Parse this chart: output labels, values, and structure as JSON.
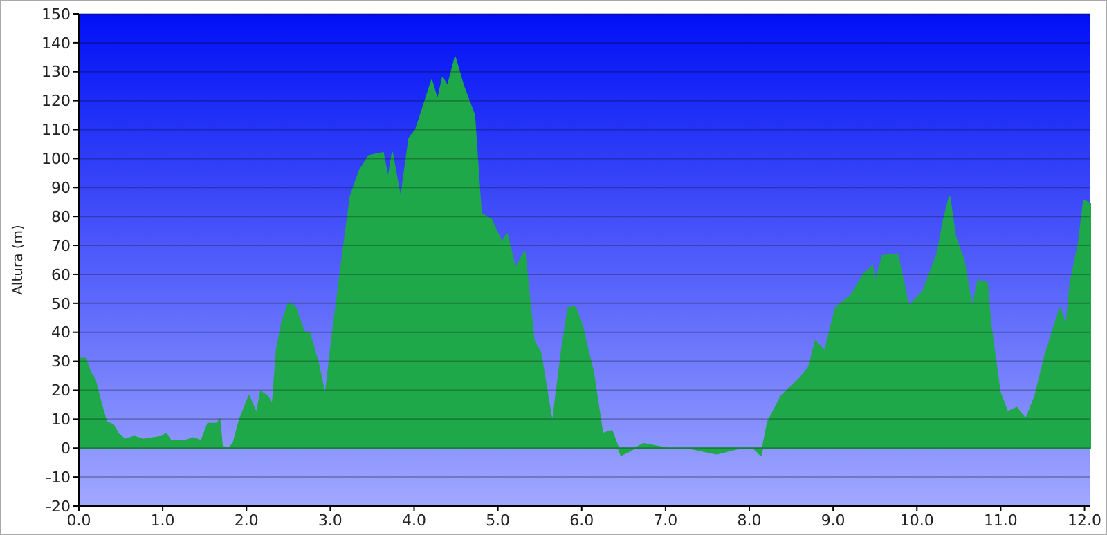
{
  "chart_data": {
    "type": "area",
    "ylabel": "Altura (m)",
    "grid": "y",
    "x": [
      0,
      0.08,
      0.14,
      0.19,
      0.27,
      0.33,
      0.41,
      0.47,
      0.55,
      0.66,
      0.77,
      0.99,
      1.04,
      1.1,
      1.26,
      1.37,
      1.46,
      1.54,
      1.65,
      1.68,
      1.71,
      1.79,
      1.84,
      1.92,
      2.03,
      2.12,
      2.17,
      2.25,
      2.31,
      2.36,
      2.42,
      2.5,
      2.58,
      2.69,
      2.75,
      2.86,
      2.94,
      3.02,
      3.13,
      3.24,
      3.35,
      3.46,
      3.63,
      3.69,
      3.74,
      3.84,
      3.94,
      4.02,
      4.21,
      4.28,
      4.34,
      4.4,
      4.49,
      4.59,
      4.72,
      4.8,
      4.92,
      5.05,
      5.11,
      5.21,
      5.32,
      5.43,
      5.51,
      5.65,
      5.76,
      5.84,
      5.92,
      6.0,
      6.14,
      6.25,
      6.36,
      6.47,
      6.74,
      7.01,
      7.28,
      7.61,
      7.89,
      8.05,
      8.14,
      8.22,
      8.38,
      8.6,
      8.71,
      8.79,
      8.9,
      9.03,
      9.22,
      9.36,
      9.47,
      9.5,
      9.59,
      9.77,
      9.9,
      10.07,
      10.24,
      10.32,
      10.39,
      10.46,
      10.56,
      10.66,
      10.73,
      10.84,
      10.88,
      10.99,
      11.08,
      11.19,
      11.3,
      11.41,
      11.52,
      11.63,
      11.71,
      11.78,
      11.83,
      11.93,
      11.99,
      12.07
    ],
    "series": [
      {
        "color": "#1fa84a",
        "values": [
          31,
          31,
          26,
          24,
          15,
          9,
          8,
          5,
          3,
          4,
          3,
          4,
          5,
          2.5,
          2.5,
          3.5,
          2.5,
          8.5,
          8.5,
          10,
          0.5,
          0,
          1.5,
          10,
          18,
          12,
          19.5,
          18,
          15,
          34,
          43,
          50,
          49,
          40,
          40,
          29,
          18,
          38,
          63,
          87,
          96,
          101,
          102,
          93,
          102,
          86,
          107,
          110,
          127,
          120,
          128,
          125,
          135,
          125,
          115,
          81,
          79,
          71,
          74,
          62,
          68,
          37,
          33,
          8.5,
          33.5,
          48.5,
          49,
          43,
          26,
          5,
          6,
          -2.5,
          1.5,
          0,
          0,
          -2,
          0,
          0,
          -2.5,
          9,
          18,
          24,
          28,
          37,
          33.5,
          48.5,
          53,
          60,
          63,
          57,
          66.5,
          67,
          49,
          54,
          67,
          79,
          87,
          73,
          65,
          48.5,
          58,
          57,
          43,
          19.5,
          12.5,
          14,
          10,
          18,
          31,
          41.5,
          48.5,
          42,
          57,
          71,
          85.5,
          84.5
        ]
      }
    ],
    "xlim": [
      0,
      12.07
    ],
    "xticks": [
      {
        "value": 0,
        "label": "0.0"
      },
      {
        "value": 1,
        "label": "1.0"
      },
      {
        "value": 2,
        "label": "2.0"
      },
      {
        "value": 3,
        "label": "3.0"
      },
      {
        "value": 4,
        "label": "4.0"
      },
      {
        "value": 5,
        "label": "5.0"
      },
      {
        "value": 6,
        "label": "6.0"
      },
      {
        "value": 7,
        "label": "7.0"
      },
      {
        "value": 8,
        "label": "8.0"
      },
      {
        "value": 9,
        "label": "9.0"
      },
      {
        "value": 10,
        "label": "10.0"
      },
      {
        "value": 11,
        "label": "11.0"
      },
      {
        "value": 12,
        "label": "12.0"
      }
    ],
    "ylim": [
      -20,
      150
    ],
    "yticks": [
      -20,
      -10,
      0,
      10,
      20,
      30,
      40,
      50,
      60,
      70,
      80,
      90,
      100,
      110,
      120,
      130,
      140,
      150
    ]
  }
}
